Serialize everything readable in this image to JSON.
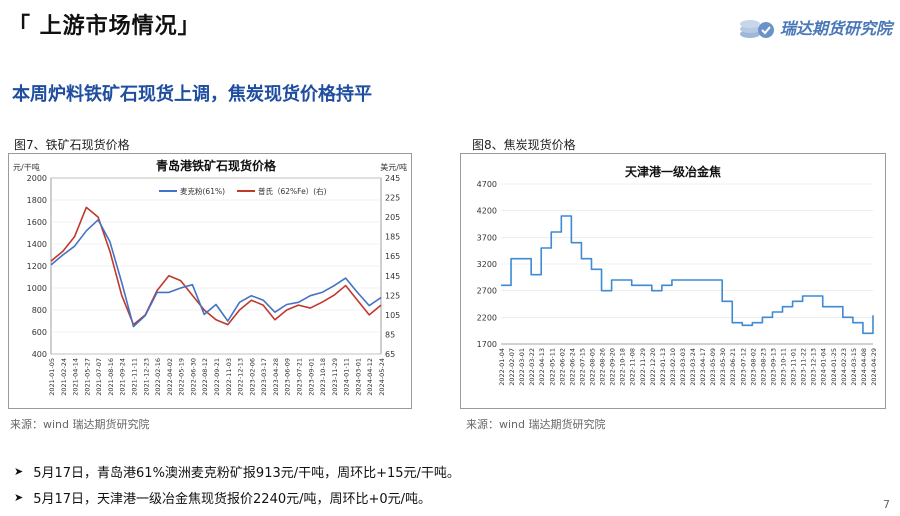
{
  "header": {
    "title": "「 上游市场情况」",
    "brand": "瑞达期货研究院"
  },
  "headline": "本周炉料铁矿石现货上调，焦炭现货价格持平",
  "left_panel": {
    "caption": "图7、铁矿石现货价格",
    "source": "来源：wind   瑞达期货研究院"
  },
  "right_panel": {
    "caption": "图8、焦炭现货价格",
    "source": "来源：wind   瑞达期货研究院"
  },
  "bullets": [
    "5月17日，青岛港61%澳洲麦克粉矿报913元/干吨，周环比+15元/干吨。",
    "5月17日，天津港一级冶金焦现货报价2240元/吨，周环比+0元/吨。"
  ],
  "page_number": "7",
  "colors": {
    "blue": "#4472c4",
    "red": "#c0392b",
    "coke": "#3d8ad6",
    "brand": "#4a78b8",
    "headline": "#1f4ea0"
  },
  "chart_data": [
    {
      "type": "line",
      "title": "青岛港铁矿石现货价格",
      "ylabel_left": "元/干吨",
      "ylabel_right": "美元/吨",
      "ylim_left": [
        400,
        2000
      ],
      "yticks_left": [
        "2000",
        "1800",
        "1600",
        "1400",
        "1200",
        "1000",
        "800",
        "600",
        "400"
      ],
      "ylim_right": [
        65,
        245
      ],
      "yticks_right": [
        "245",
        "225",
        "205",
        "185",
        "165",
        "145",
        "125",
        "105",
        "85",
        "65"
      ],
      "legend_position": "top-center",
      "x": [
        "2021-01-05",
        "2021-02-24",
        "2021-04-14",
        "2021-05-27",
        "2021-07-07",
        "2021-08-16",
        "2021-09-24",
        "2021-11-11",
        "2021-12-23",
        "2022-02-16",
        "2022-04-02",
        "2022-05-19",
        "2022-06-30",
        "2022-08-12",
        "2022-09-21",
        "2022-11-03",
        "2022-12-13",
        "2023-02-06",
        "2023-03-17",
        "2023-04-28",
        "2023-06-09",
        "2023-07-21",
        "2023-09-01",
        "2023-10-18",
        "2023-11-29",
        "2024-01-11",
        "2024-03-01",
        "2024-04-12",
        "2024-05-24"
      ],
      "series": [
        {
          "name": "麦克粉(61%)",
          "axis": "left",
          "values": [
            1210,
            1300,
            1380,
            1520,
            1620,
            1420,
            1050,
            650,
            750,
            960,
            960,
            1000,
            1030,
            760,
            850,
            700,
            870,
            930,
            890,
            780,
            850,
            870,
            930,
            960,
            1020,
            1090,
            960,
            840,
            913
          ]
        },
        {
          "name": "普氏（62%Fe）(右)",
          "axis": "right",
          "values": [
            160,
            170,
            185,
            215,
            205,
            170,
            125,
            95,
            105,
            130,
            145,
            140,
            125,
            110,
            100,
            95,
            110,
            120,
            115,
            100,
            110,
            115,
            112,
            118,
            125,
            135,
            120,
            105,
            115
          ]
        }
      ]
    },
    {
      "type": "line",
      "title": "天津港一级冶金焦",
      "ylim": [
        1700,
        4700
      ],
      "yticks": [
        "4700",
        "4200",
        "3700",
        "3200",
        "2700",
        "2200",
        "1700"
      ],
      "x": [
        "2022-01-04",
        "2022-02-07",
        "2022-03-01",
        "2022-03-22",
        "2022-04-13",
        "2022-05-11",
        "2022-06-02",
        "2022-06-24",
        "2022-07-15",
        "2022-08-05",
        "2022-08-26",
        "2022-09-20",
        "2022-10-18",
        "2022-11-08",
        "2022-11-29",
        "2022-12-20",
        "2023-01-13",
        "2023-02-10",
        "2023-03-03",
        "2023-03-24",
        "2023-04-17",
        "2023-05-09",
        "2023-05-30",
        "2023-06-21",
        "2023-07-12",
        "2023-08-02",
        "2023-08-23",
        "2023-09-13",
        "2023-10-11",
        "2023-11-01",
        "2023-11-22",
        "2023-12-13",
        "2024-01-04",
        "2024-01-25",
        "2024-02-23",
        "2024-03-15",
        "2024-04-08",
        "2024-04-29"
      ],
      "series": [
        {
          "name": "天津港一级冶金焦",
          "values": [
            2800,
            3300,
            3300,
            3000,
            3500,
            3800,
            4100,
            3600,
            3300,
            3100,
            2700,
            2900,
            2900,
            2800,
            2800,
            2700,
            2800,
            2900,
            2900,
            2900,
            2900,
            2900,
            2500,
            2100,
            2050,
            2100,
            2200,
            2300,
            2400,
            2500,
            2600,
            2600,
            2400,
            2400,
            2200,
            2100,
            1900,
            2240
          ]
        }
      ]
    }
  ]
}
